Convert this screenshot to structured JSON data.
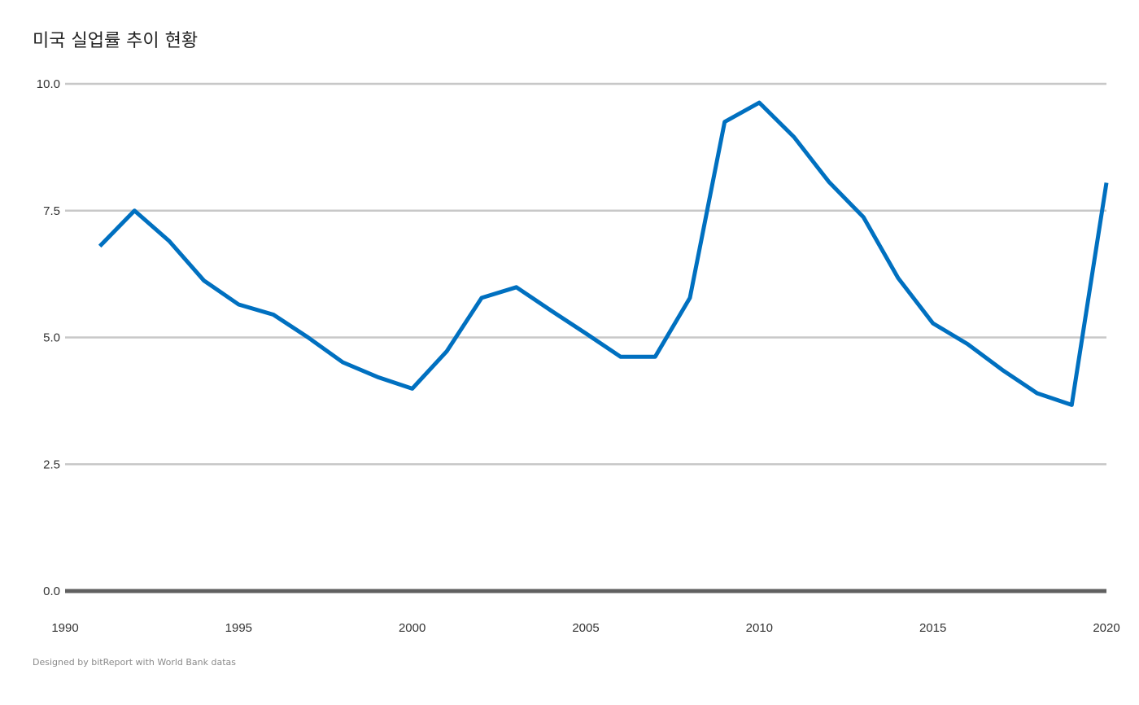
{
  "title": "미국 실업률 추이 현황",
  "footer": "Designed by bitReport with World Bank datas",
  "colors": {
    "line": "#0070C0",
    "grid": "#C8C8C8",
    "baseline": "#606060",
    "text": "#333333"
  },
  "chart_data": {
    "type": "line",
    "title": "미국 실업률 추이 현황",
    "xlabel": "",
    "ylabel": "",
    "xlim": [
      1990,
      2020
    ],
    "ylim": [
      0,
      10
    ],
    "x_ticks": [
      "1990",
      "1995",
      "2000",
      "2005",
      "2010",
      "2015",
      "2020"
    ],
    "y_ticks": [
      "0.0",
      "2.5",
      "5.0",
      "7.5",
      "10.0"
    ],
    "grid": true,
    "x": [
      1991,
      1992,
      1993,
      1994,
      1995,
      1996,
      1997,
      1998,
      1999,
      2000,
      2001,
      2002,
      2003,
      2004,
      2005,
      2006,
      2007,
      2008,
      2009,
      2010,
      2011,
      2012,
      2013,
      2014,
      2015,
      2016,
      2017,
      2018,
      2019,
      2020
    ],
    "series": [
      {
        "values": [
          6.8,
          7.5,
          6.9,
          6.12,
          5.65,
          5.45,
          5.0,
          4.51,
          4.22,
          3.99,
          4.73,
          5.78,
          5.99,
          5.53,
          5.08,
          4.62,
          4.62,
          5.78,
          9.25,
          9.63,
          8.95,
          8.07,
          7.37,
          6.17,
          5.28,
          4.87,
          4.36,
          3.9,
          3.67,
          8.05
        ]
      }
    ]
  }
}
